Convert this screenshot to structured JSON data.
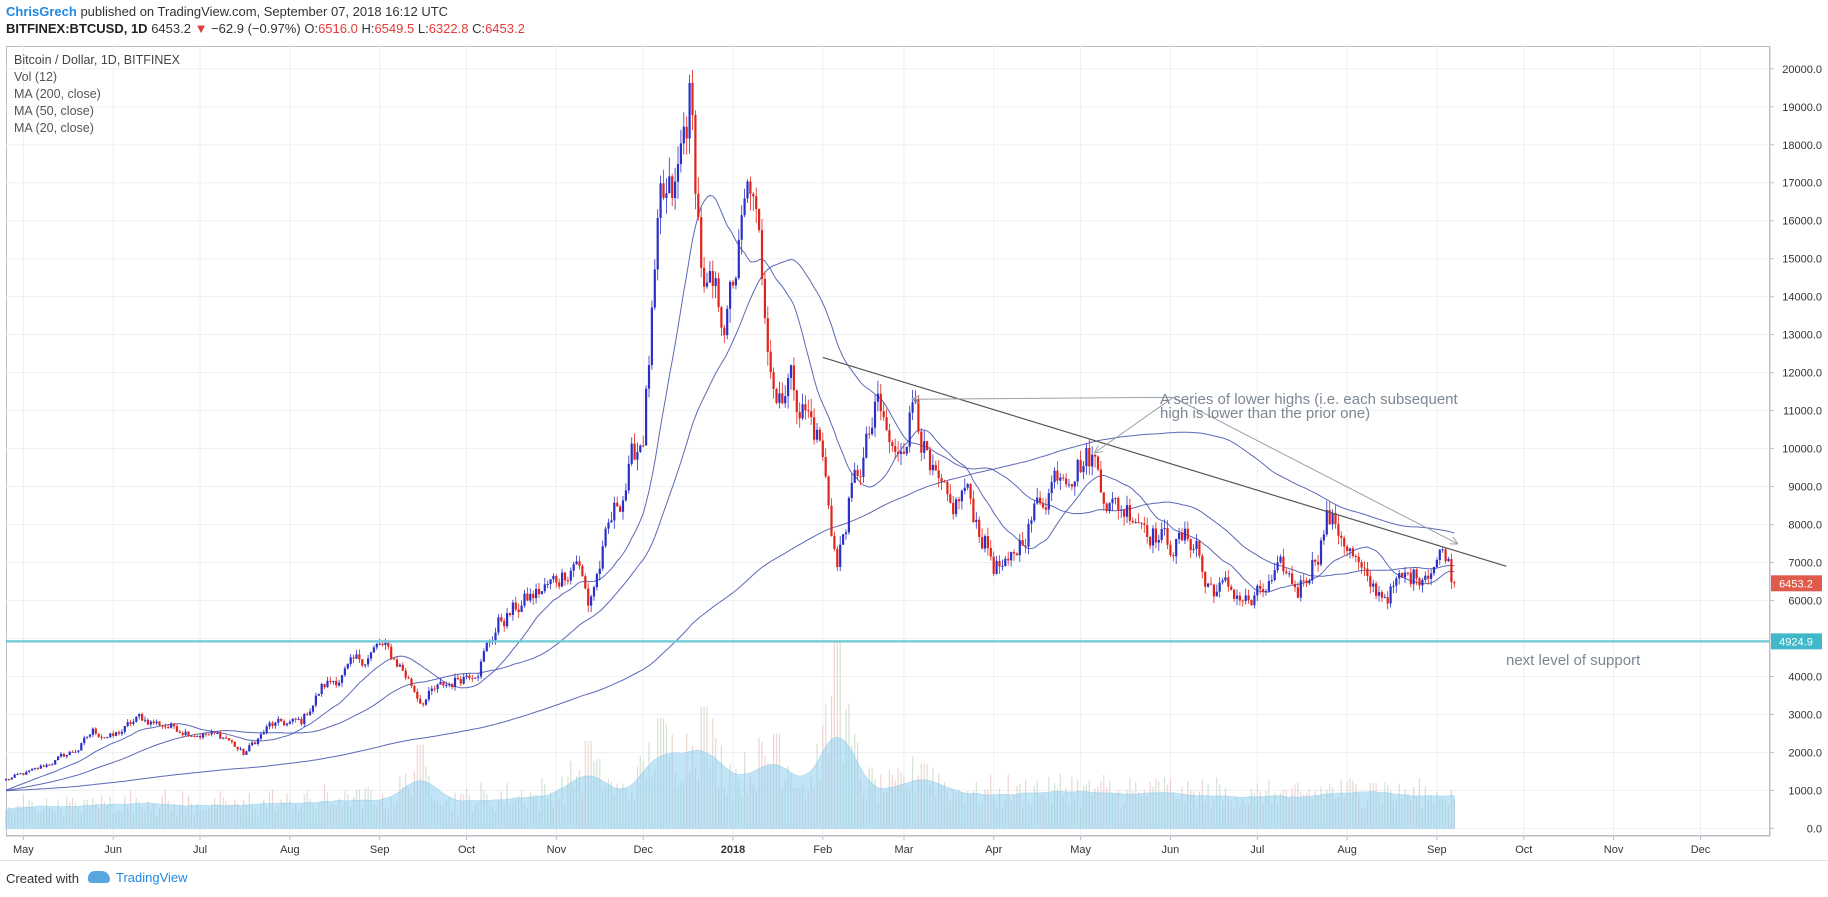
{
  "header": {
    "author": "ChrisGrech",
    "published_text": "published on TradingView.com, September 07, 2018 16:12 UTC",
    "symbol": "BITFINEX:BTCUSD, 1D",
    "last_price": "6453.2",
    "change_arrow": "▼",
    "change": "−62.9 (−0.97%)",
    "open_label": "O:",
    "open": "6516.0",
    "high_label": "H:",
    "high": "6549.5",
    "low_label": "L:",
    "low": "6322.8",
    "close_label": "C:",
    "close": "6453.2"
  },
  "legend": {
    "title": "Bitcoin / Dollar, 1D, BITFINEX",
    "items": [
      "Vol (12)",
      "MA (200, close)",
      "MA (50, close)",
      "MA (20, close)"
    ]
  },
  "footer": {
    "created_with": "Created with",
    "brand": "TradingView"
  },
  "colors": {
    "up": "#2b31c8",
    "down": "#e0241b",
    "ma_line": "#4a59b0",
    "volume_area": "#8fd0f0",
    "support_line": "#6bc9d6",
    "trend_line": "#555555",
    "price_tag": "#e05b4b",
    "support_tag": "#3fb8c9"
  },
  "annotations": {
    "lower_highs": "A series of lower highs (i.e. each subsequent high is lower than the prior one)",
    "lower_highs_line1": "A series of lower highs (i.e. each subsequent",
    "lower_highs_line2": "high is lower than the prior one)",
    "support": "next level of support"
  },
  "price_tags": {
    "last": "6453.2",
    "support": "4924.9"
  },
  "chart_data": {
    "type": "candlestick",
    "title": "Bitcoin / Dollar, 1D, BITFINEX",
    "x_labels": [
      "May",
      "Jun",
      "Jul",
      "Aug",
      "Sep",
      "Oct",
      "Nov",
      "Dec",
      "2018",
      "Feb",
      "Mar",
      "Apr",
      "May",
      "Jun",
      "Jul",
      "Aug",
      "Sep",
      "Oct",
      "Nov",
      "Dec"
    ],
    "x_label_dates": [
      "2017-05-01",
      "2017-06-01",
      "2017-07-01",
      "2017-08-01",
      "2017-09-01",
      "2017-10-01",
      "2017-11-01",
      "2017-12-01",
      "2018-01-01",
      "2018-02-01",
      "2018-03-01",
      "2018-04-01",
      "2018-05-01",
      "2018-06-01",
      "2018-07-01",
      "2018-08-01",
      "2018-09-01",
      "2018-10-01",
      "2018-11-01",
      "2018-12-01"
    ],
    "y_ticks": [
      0,
      1000,
      2000,
      3000,
      4000,
      5000,
      6000,
      7000,
      8000,
      9000,
      10000,
      11000,
      12000,
      13000,
      14000,
      15000,
      16000,
      17000,
      18000,
      19000,
      20000
    ],
    "y_tick_labels": [
      "0.0",
      "1000.0",
      "2000.0",
      "3000.0",
      "4000.0",
      "5000.0",
      "6000.0",
      "7000.0",
      "8000.0",
      "9000.0",
      "10000.0",
      "11000.0",
      "12000.0",
      "13000.0",
      "14000.0",
      "15000.0",
      "16000.0",
      "17000.0",
      "18000.0",
      "19000.0",
      "20000.0"
    ],
    "ylim": [
      -200,
      20600
    ],
    "x_range": [
      "2017-04-25",
      "2018-12-25"
    ],
    "price_anchors": [
      [
        "2017-04-25",
        1280
      ],
      [
        "2017-05-05",
        1520
      ],
      [
        "2017-05-20",
        2100
      ],
      [
        "2017-05-25",
        2550
      ],
      [
        "2017-06-01",
        2400
      ],
      [
        "2017-06-10",
        2900
      ],
      [
        "2017-06-20",
        2700
      ],
      [
        "2017-07-01",
        2500
      ],
      [
        "2017-07-10",
        2400
      ],
      [
        "2017-07-16",
        1950
      ],
      [
        "2017-07-25",
        2700
      ],
      [
        "2017-08-05",
        2800
      ],
      [
        "2017-08-12",
        3700
      ],
      [
        "2017-08-20",
        4100
      ],
      [
        "2017-09-01",
        4800
      ],
      [
        "2017-09-08",
        4300
      ],
      [
        "2017-09-15",
        3400
      ],
      [
        "2017-09-25",
        3800
      ],
      [
        "2017-10-05",
        4300
      ],
      [
        "2017-10-12",
        5400
      ],
      [
        "2017-10-20",
        5900
      ],
      [
        "2017-11-01",
        6500
      ],
      [
        "2017-11-08",
        7200
      ],
      [
        "2017-11-12",
        5900
      ],
      [
        "2017-11-20",
        8000
      ],
      [
        "2017-12-01",
        10500
      ],
      [
        "2017-12-07",
        16000
      ],
      [
        "2017-12-12",
        16500
      ],
      [
        "2017-12-17",
        19200
      ],
      [
        "2017-12-22",
        14000
      ],
      [
        "2017-12-30",
        13500
      ],
      [
        "2018-01-07",
        16800
      ],
      [
        "2018-01-16",
        11500
      ],
      [
        "2018-01-20",
        12000
      ],
      [
        "2018-01-31",
        10200
      ],
      [
        "2018-02-06",
        6900
      ],
      [
        "2018-02-10",
        8500
      ],
      [
        "2018-02-20",
        11000
      ],
      [
        "2018-02-26",
        9600
      ],
      [
        "2018-03-05",
        11500
      ],
      [
        "2018-03-10",
        9200
      ],
      [
        "2018-03-17",
        8200
      ],
      [
        "2018-03-22",
        8900
      ],
      [
        "2018-04-01",
        7000
      ],
      [
        "2018-04-06",
        6700
      ],
      [
        "2018-04-12",
        7900
      ],
      [
        "2018-04-24",
        9600
      ],
      [
        "2018-05-05",
        9800
      ],
      [
        "2018-05-12",
        8500
      ],
      [
        "2018-05-20",
        8400
      ],
      [
        "2018-05-31",
        7500
      ],
      [
        "2018-06-10",
        7600
      ],
      [
        "2018-06-13",
        6400
      ],
      [
        "2018-06-24",
        6200
      ],
      [
        "2018-06-29",
        5900
      ],
      [
        "2018-07-10",
        6700
      ],
      [
        "2018-07-15",
        6300
      ],
      [
        "2018-07-22",
        7400
      ],
      [
        "2018-07-25",
        8200
      ],
      [
        "2018-07-31",
        7700
      ],
      [
        "2018-08-08",
        6300
      ],
      [
        "2018-08-14",
        6200
      ],
      [
        "2018-08-25",
        6700
      ],
      [
        "2018-09-04",
        7300
      ],
      [
        "2018-09-07",
        6453
      ]
    ],
    "volume_peaks": [
      [
        "2017-09-15",
        2200
      ],
      [
        "2017-11-12",
        2300
      ],
      [
        "2017-12-07",
        2900
      ],
      [
        "2017-12-22",
        3200
      ],
      [
        "2018-01-16",
        2500
      ],
      [
        "2018-02-06",
        4900
      ],
      [
        "2018-03-08",
        1700
      ],
      [
        "2018-08-10",
        1200
      ]
    ],
    "moving_averages": [
      "MA (200, close)",
      "MA (50, close)",
      "MA (20, close)"
    ],
    "volume_series": "Vol (12)",
    "support_level": 4924.9,
    "last_price": 6453.2,
    "trendline": [
      [
        "2018-02-01",
        12400
      ],
      [
        "2018-09-25",
        6900
      ]
    ],
    "arrow_targets": [
      [
        "2018-03-04",
        11300
      ],
      [
        "2018-05-06",
        9900
      ],
      [
        "2018-09-08",
        7500
      ]
    ]
  }
}
